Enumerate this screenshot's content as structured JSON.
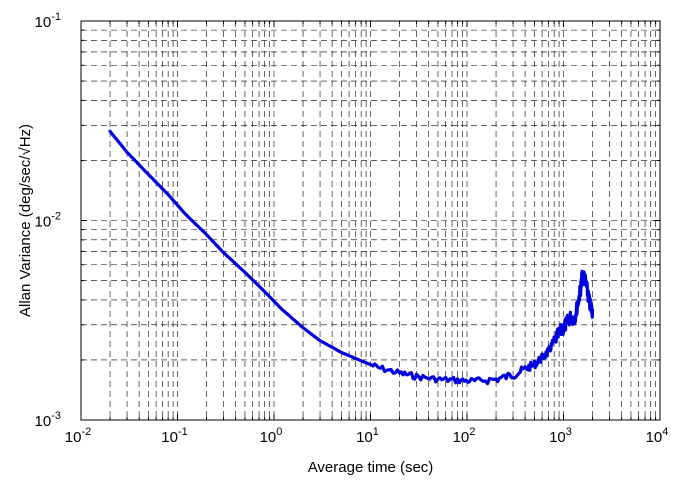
{
  "chart_data": {
    "type": "line",
    "title": "",
    "xlabel": "Average time (sec)",
    "ylabel": "Allan Variance (deg/sec/√Hz)",
    "xscale": "log",
    "yscale": "log",
    "xlim": [
      0.01,
      10000
    ],
    "ylim": [
      0.001,
      0.1
    ],
    "grid": true,
    "grid_style": "dashed",
    "legend": "none",
    "x_ticks": [
      {
        "base": "10",
        "exp": "-2",
        "value": 0.01
      },
      {
        "base": "10",
        "exp": "-1",
        "value": 0.1
      },
      {
        "base": "10",
        "exp": "0",
        "value": 1
      },
      {
        "base": "10",
        "exp": "1",
        "value": 10
      },
      {
        "base": "10",
        "exp": "2",
        "value": 100
      },
      {
        "base": "10",
        "exp": "3",
        "value": 1000
      },
      {
        "base": "10",
        "exp": "4",
        "value": 10000
      }
    ],
    "y_ticks": [
      {
        "base": "10",
        "exp": "-3",
        "value": 0.001
      },
      {
        "base": "10",
        "exp": "-2",
        "value": 0.01
      },
      {
        "base": "10",
        "exp": "-1",
        "value": 0.1
      }
    ],
    "series": [
      {
        "color": "#0000dd",
        "x": [
          0.02,
          0.03,
          0.05,
          0.08,
          0.12,
          0.2,
          0.3,
          0.5,
          0.8,
          1.2,
          2,
          3,
          5,
          8,
          12,
          20,
          30,
          50,
          80,
          120,
          200,
          300,
          400,
          500,
          600,
          700,
          800,
          900,
          1000,
          1100,
          1200,
          1300,
          1400,
          1500,
          1550,
          1600,
          1700,
          1800,
          1900,
          2000
        ],
        "y": [
          0.028,
          0.022,
          0.017,
          0.0135,
          0.0108,
          0.0085,
          0.0069,
          0.0055,
          0.0044,
          0.0036,
          0.0029,
          0.0025,
          0.00218,
          0.00198,
          0.00183,
          0.00172,
          0.00165,
          0.0016,
          0.00158,
          0.00157,
          0.0016,
          0.00168,
          0.0018,
          0.0019,
          0.00205,
          0.0022,
          0.0025,
          0.0027,
          0.0029,
          0.0031,
          0.0033,
          0.0032,
          0.0038,
          0.0045,
          0.0051,
          0.0054,
          0.0049,
          0.0042,
          0.0037,
          0.0035
        ]
      }
    ]
  }
}
